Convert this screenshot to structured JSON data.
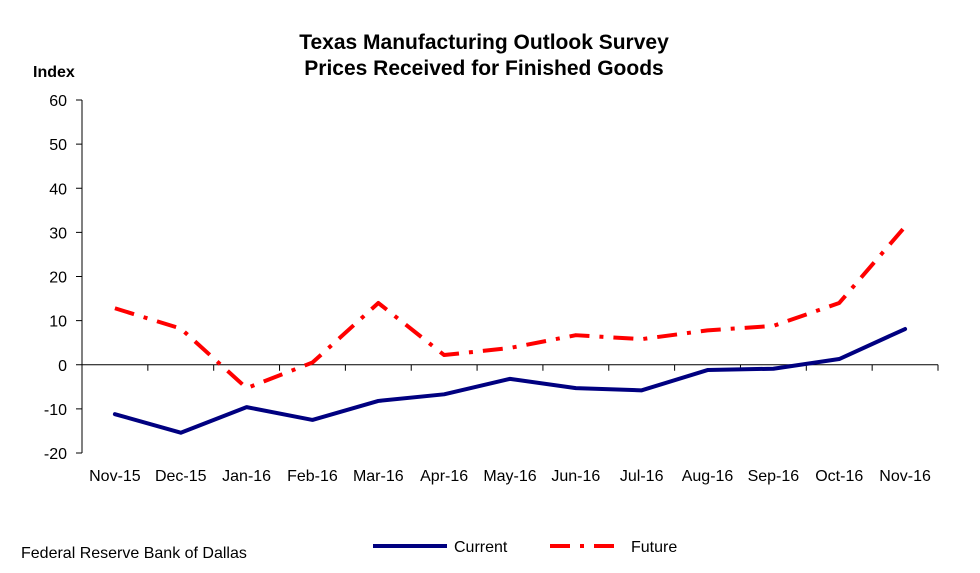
{
  "source": "Federal Reserve Bank of Dallas",
  "chart_data": {
    "type": "line",
    "title": "Texas Manufacturing Outlook  Survey",
    "subtitle": "Prices Received for Finished Goods",
    "ylabel": "Index",
    "xlabel": "",
    "ylim": [
      -20,
      60
    ],
    "yticks": [
      60,
      50,
      40,
      30,
      20,
      10,
      0,
      -10,
      -20
    ],
    "categories": [
      "Nov-15",
      "Dec-15",
      "Jan-16",
      "Feb-16",
      "Mar-16",
      "Apr-16",
      "May-16",
      "Jun-16",
      "Jul-16",
      "Aug-16",
      "Sep-16",
      "Oct-16",
      "Nov-16"
    ],
    "grid": false,
    "legend_position": "bottom",
    "series": [
      {
        "name": "Current",
        "color": "#000080",
        "style": "solid",
        "values": [
          -11.2,
          -15.4,
          -9.6,
          -12.5,
          -8.2,
          -6.7,
          -3.2,
          -5.3,
          -5.8,
          -1.2,
          -0.9,
          1.3,
          8.1
        ]
      },
      {
        "name": "Future",
        "color": "#ff0000",
        "style": "dash-dot",
        "values": [
          12.8,
          8.2,
          -5.3,
          0.5,
          14.0,
          2.2,
          3.8,
          6.7,
          5.8,
          7.8,
          8.8,
          14.0,
          31.3
        ]
      }
    ]
  }
}
